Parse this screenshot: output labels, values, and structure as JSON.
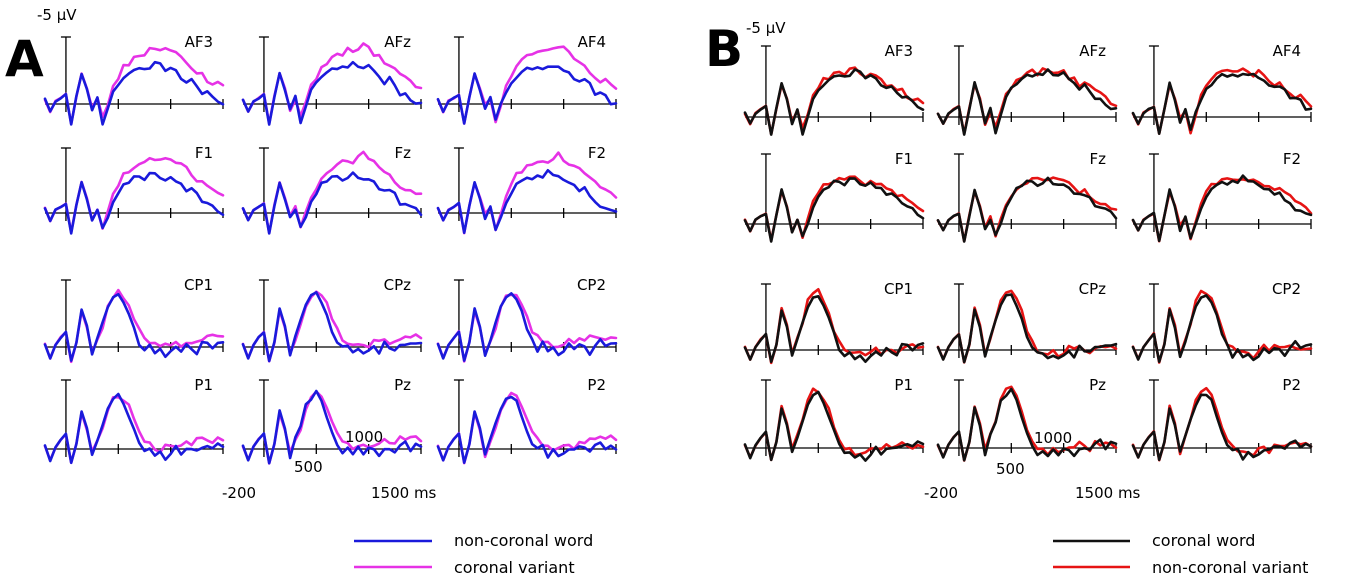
{
  "chart_data": [
    {
      "type": "line",
      "panel": "A",
      "amplitude_label": "-5 µV",
      "time_labels": [
        "-200",
        "500",
        "1000",
        "1500 ms"
      ],
      "legend": [
        {
          "name": "non-coronal word",
          "color": "#1a1adb"
        },
        {
          "name": "coronal variant",
          "color": "#e632e6"
        }
      ],
      "electrodes": [
        "AF3",
        "AFz",
        "AF4",
        "F1",
        "Fz",
        "F2",
        "CP1",
        "CPz",
        "CP2",
        "P1",
        "Pz",
        "P2"
      ],
      "time_ms": [
        -200,
        -150,
        -100,
        -50,
        0,
        50,
        100,
        150,
        200,
        250,
        300,
        350,
        400,
        450,
        500,
        550,
        600,
        650,
        700,
        750,
        800,
        850,
        900,
        950,
        1000,
        1050,
        1100,
        1150,
        1200,
        1250,
        1300,
        1350,
        1400,
        1450,
        1500
      ],
      "amplitude_unit": "µV (negative up)",
      "series_group_profiles": {
        "frontal_non_coronal_word": [
          0.5,
          -0.8,
          0.3,
          0.6,
          1.0,
          -2.1,
          0.8,
          3.2,
          1.5,
          -0.5,
          0.5,
          -1.8,
          -0.3,
          1.2,
          2.0,
          3.0,
          3.3,
          3.5,
          3.8,
          3.7,
          4.0,
          4.2,
          4.0,
          3.6,
          3.8,
          3.5,
          2.8,
          2.2,
          2.6,
          1.9,
          1.2,
          1.0,
          0.6,
          0.2,
          0.0
        ],
        "frontal_coronal_variant": [
          0.5,
          -0.8,
          0.3,
          0.6,
          1.0,
          -2.1,
          0.8,
          3.2,
          1.6,
          -0.4,
          0.6,
          -1.6,
          0.0,
          1.8,
          2.8,
          3.9,
          4.4,
          4.8,
          5.0,
          5.2,
          5.6,
          5.5,
          5.8,
          6.1,
          5.7,
          5.4,
          4.9,
          4.6,
          4.0,
          3.5,
          3.0,
          2.6,
          2.4,
          2.0,
          1.8
        ],
        "posterior_non_coronal_word": [
          0.3,
          -1.2,
          0.2,
          1.0,
          1.6,
          -1.5,
          0.5,
          4.0,
          2.2,
          -0.8,
          1.0,
          2.5,
          4.5,
          5.5,
          5.8,
          5.0,
          3.5,
          1.8,
          0.5,
          -0.2,
          0.3,
          -0.6,
          0.0,
          -0.8,
          -0.2,
          0.2,
          -0.4,
          0.3,
          0.0,
          -0.5,
          0.2,
          0.5,
          0.1,
          0.4,
          0.2
        ],
        "posterior_coronal_variant": [
          0.3,
          -1.2,
          0.2,
          1.0,
          1.6,
          -1.5,
          0.5,
          3.8,
          2.0,
          -0.6,
          0.8,
          2.2,
          4.0,
          5.2,
          5.7,
          5.4,
          4.5,
          3.2,
          1.8,
          0.9,
          0.5,
          0.2,
          0.0,
          0.3,
          0.2,
          0.5,
          0.3,
          0.7,
          0.6,
          0.9,
          1.0,
          1.2,
          1.0,
          1.3,
          1.1
        ]
      }
    },
    {
      "type": "line",
      "panel": "B",
      "amplitude_label": "-5 µV",
      "time_labels": [
        "-200",
        "500",
        "1000",
        "1500 ms"
      ],
      "legend": [
        {
          "name": "coronal word",
          "color": "#111111"
        },
        {
          "name": "non-coronal variant",
          "color": "#e61414"
        }
      ],
      "electrodes": [
        "AF3",
        "AFz",
        "AF4",
        "F1",
        "Fz",
        "F2",
        "CP1",
        "CPz",
        "CP2",
        "P1",
        "Pz",
        "P2"
      ],
      "time_ms": [
        -200,
        -150,
        -100,
        -50,
        0,
        50,
        100,
        150,
        200,
        250,
        300,
        350,
        400,
        450,
        500,
        550,
        600,
        650,
        700,
        750,
        800,
        850,
        900,
        950,
        1000,
        1050,
        1100,
        1150,
        1200,
        1250,
        1300,
        1350,
        1400,
        1450,
        1500
      ],
      "amplitude_unit": "µV (negative up)",
      "series_group_profiles": {
        "frontal_coronal_word": [
          0.4,
          -0.7,
          0.4,
          0.8,
          1.1,
          -1.8,
          0.9,
          3.6,
          1.8,
          -0.6,
          0.6,
          -1.5,
          0.2,
          1.8,
          2.8,
          3.6,
          4.0,
          4.2,
          4.4,
          4.3,
          4.6,
          4.8,
          4.5,
          4.2,
          4.4,
          4.0,
          3.5,
          3.0,
          3.2,
          2.6,
          2.2,
          1.8,
          1.5,
          1.0,
          0.8
        ],
        "frontal_non_coronal_variant": [
          0.4,
          -0.7,
          0.4,
          0.8,
          1.1,
          -1.8,
          0.9,
          3.4,
          1.9,
          -0.5,
          0.7,
          -1.4,
          0.4,
          2.2,
          3.2,
          3.9,
          4.3,
          4.5,
          4.7,
          4.5,
          4.8,
          4.9,
          4.7,
          4.4,
          4.6,
          4.3,
          3.9,
          3.5,
          3.6,
          3.1,
          2.7,
          2.3,
          2.1,
          1.6,
          1.3
        ],
        "posterior_coronal_word": [
          0.3,
          -1.0,
          0.3,
          1.1,
          1.7,
          -1.3,
          0.6,
          4.2,
          2.4,
          -0.6,
          1.2,
          2.8,
          4.8,
          5.8,
          5.9,
          5.0,
          3.4,
          1.6,
          0.3,
          -0.5,
          -0.2,
          -0.9,
          -0.4,
          -1.0,
          -0.4,
          0.0,
          -0.5,
          0.2,
          0.0,
          -0.3,
          0.3,
          0.6,
          0.2,
          0.5,
          0.4
        ],
        "posterior_non_coronal_variant": [
          0.3,
          -1.0,
          0.3,
          1.1,
          1.7,
          -1.3,
          0.6,
          4.4,
          2.6,
          -0.4,
          1.3,
          3.0,
          5.0,
          6.0,
          6.1,
          5.4,
          4.0,
          2.2,
          0.8,
          0.0,
          -0.2,
          -0.5,
          -0.3,
          -0.6,
          -0.2,
          0.2,
          -0.2,
          0.3,
          0.2,
          0.0,
          0.4,
          0.5,
          0.3,
          0.4,
          0.3
        ]
      }
    }
  ]
}
